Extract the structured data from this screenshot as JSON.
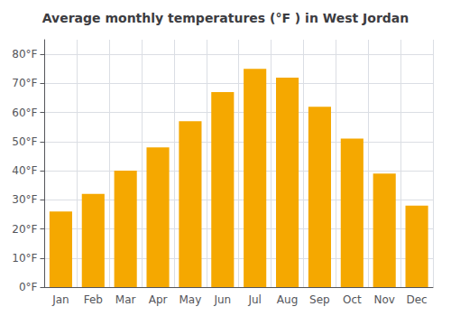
{
  "chart_data": {
    "type": "bar",
    "title": "Average monthly temperatures (°F ) in West Jordan",
    "categories": [
      "Jan",
      "Feb",
      "Mar",
      "Apr",
      "May",
      "Jun",
      "Jul",
      "Aug",
      "Sep",
      "Oct",
      "Nov",
      "Dec"
    ],
    "values": [
      26,
      32,
      40,
      48,
      57,
      67,
      75,
      72,
      62,
      51,
      39,
      28
    ],
    "color": "#F5A800",
    "ylim": [
      0,
      85
    ],
    "yticks": [
      {
        "value": 0,
        "label": "0°F"
      },
      {
        "value": 10,
        "label": "10°F"
      },
      {
        "value": 20,
        "label": "20°F"
      },
      {
        "value": 30,
        "label": "30°F"
      },
      {
        "value": 40,
        "label": "40°F"
      },
      {
        "value": 50,
        "label": "50°F"
      },
      {
        "value": 60,
        "label": "60°F"
      },
      {
        "value": 70,
        "label": "70°F"
      },
      {
        "value": 80,
        "label": "80°F"
      }
    ],
    "grid": true
  }
}
